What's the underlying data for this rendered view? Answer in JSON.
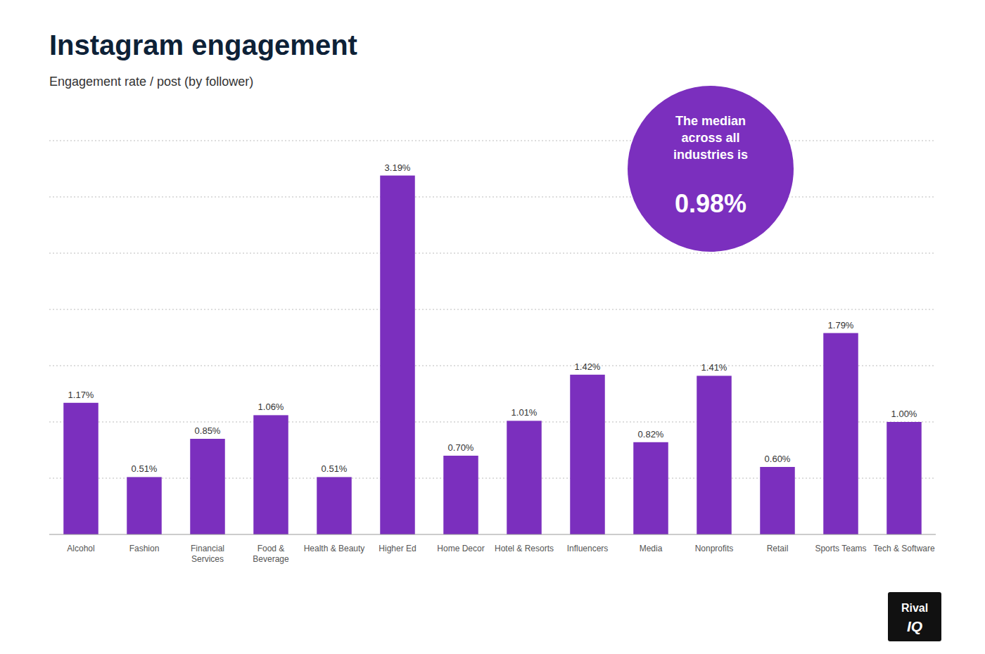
{
  "chart_data": {
    "type": "bar",
    "title": "Instagram engagement",
    "subtitle": "Engagement rate / post (by follower)",
    "categories": [
      "Alcohol",
      "Fashion",
      "Financial\nServices",
      "Food &\nBeverage",
      "Health & Beauty",
      "Higher Ed",
      "Home Decor",
      "Hotel & Resorts",
      "Influencers",
      "Media",
      "Nonprofits",
      "Retail",
      "Sports Teams",
      "Tech & Software"
    ],
    "values": [
      1.17,
      0.51,
      0.85,
      1.06,
      0.51,
      3.19,
      0.7,
      1.01,
      1.42,
      0.82,
      1.41,
      0.6,
      1.79,
      1.0
    ],
    "value_labels": [
      "1.17%",
      "0.51%",
      "0.85%",
      "1.06%",
      "0.51%",
      "3.19%",
      "0.70%",
      "1.01%",
      "1.42%",
      "0.82%",
      "1.41%",
      "0.60%",
      "1.79%",
      "1.00%"
    ],
    "color": "#7B2FBE",
    "ylim": [
      0,
      3.5
    ],
    "yticks": [
      0.5,
      1,
      1.5,
      2,
      2.5,
      3,
      3.5
    ],
    "grid": true,
    "tick_labels": "x",
    "data_labels": true,
    "annotations": [
      [
        "The median",
        "across all",
        "industries is",
        "0.98%"
      ],
      [
        "Rival",
        "IQ"
      ]
    ]
  }
}
